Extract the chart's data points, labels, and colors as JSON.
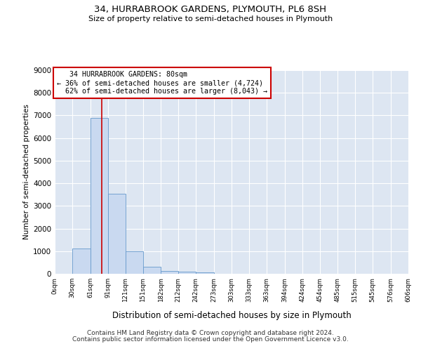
{
  "title": "34, HURRABROOK GARDENS, PLYMOUTH, PL6 8SH",
  "subtitle": "Size of property relative to semi-detached houses in Plymouth",
  "xlabel": "Distribution of semi-detached houses by size in Plymouth",
  "ylabel": "Number of semi-detached properties",
  "bar_color": "#c9d9f0",
  "bar_edge_color": "#6699cc",
  "background_color": "#dde6f2",
  "grid_color": "#ffffff",
  "bin_edges": [
    0,
    30,
    61,
    91,
    121,
    151,
    182,
    212,
    242,
    273,
    303,
    333,
    363,
    394,
    424,
    454,
    485,
    515,
    545,
    576,
    606
  ],
  "bar_heights": [
    0,
    1120,
    6890,
    3550,
    1000,
    310,
    130,
    90,
    70,
    0,
    0,
    0,
    0,
    0,
    0,
    0,
    0,
    0,
    0,
    0
  ],
  "ylim": [
    0,
    9000
  ],
  "yticks": [
    0,
    1000,
    2000,
    3000,
    4000,
    5000,
    6000,
    7000,
    8000,
    9000
  ],
  "property_size": 80,
  "property_label": "34 HURRABROOK GARDENS: 80sqm",
  "pct_smaller": 36,
  "pct_larger": 62,
  "n_smaller": 4724,
  "n_larger": 8043,
  "annotation_box_color": "#ffffff",
  "annotation_box_edge_color": "#cc0000",
  "red_line_color": "#cc0000",
  "footer_line1": "Contains HM Land Registry data © Crown copyright and database right 2024.",
  "footer_line2": "Contains public sector information licensed under the Open Government Licence v3.0.",
  "tick_labels": [
    "0sqm",
    "30sqm",
    "61sqm",
    "91sqm",
    "121sqm",
    "151sqm",
    "182sqm",
    "212sqm",
    "242sqm",
    "273sqm",
    "303sqm",
    "333sqm",
    "363sqm",
    "394sqm",
    "424sqm",
    "454sqm",
    "485sqm",
    "515sqm",
    "545sqm",
    "576sqm",
    "606sqm"
  ]
}
